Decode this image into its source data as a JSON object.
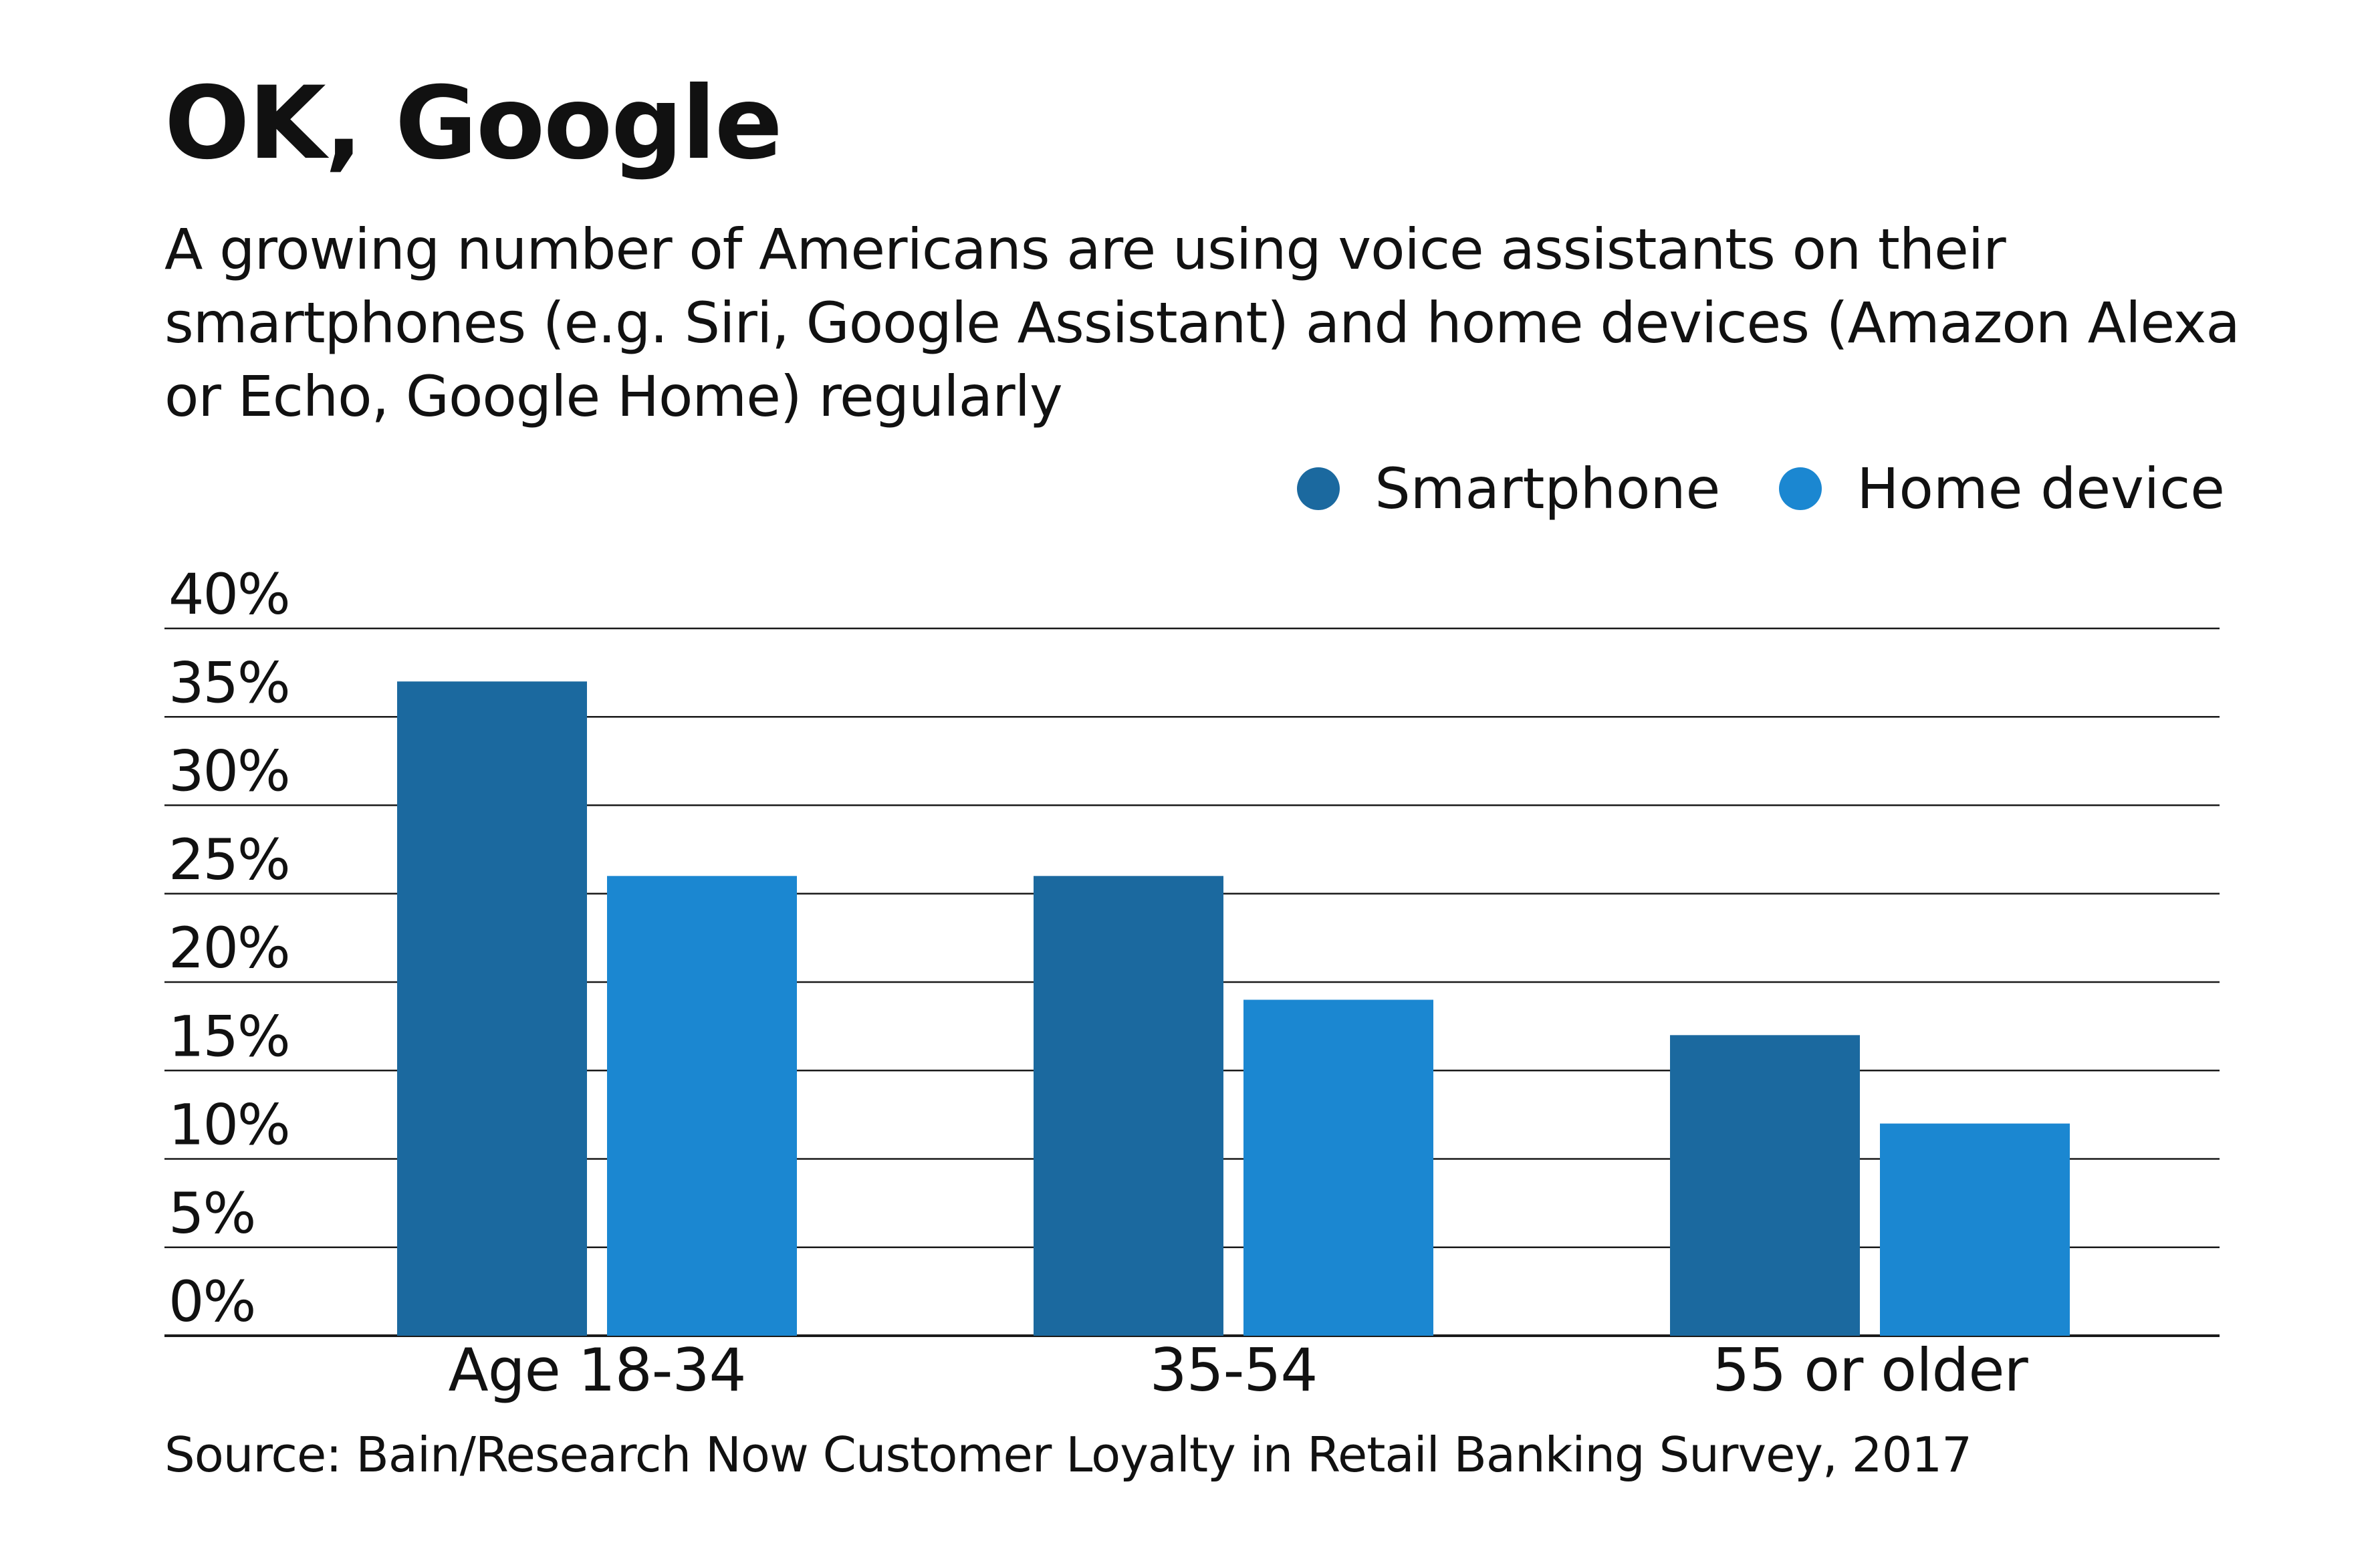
{
  "chart_data": {
    "type": "bar",
    "title": "OK, Google",
    "subtitle": "A growing number of Americans are using voice assistants on their smartphones (e.g. Siri, Google Assistant) and home devices (Amazon Alexa or Echo, Google Home) regularly",
    "categories": [
      "Age 18-34",
      "35-54",
      "55 or older"
    ],
    "series": [
      {
        "name": "Smartphone",
        "values": [
          37,
          26,
          17
        ],
        "color": "#1b699f"
      },
      {
        "name": "Home device",
        "values": [
          26,
          19,
          12
        ],
        "color": "#1b87d1"
      }
    ],
    "ylim": [
      0,
      40
    ],
    "yticks": [
      0,
      5,
      10,
      15,
      20,
      25,
      30,
      35,
      40
    ],
    "ytick_labels": [
      "0%",
      "5%",
      "10%",
      "15%",
      "20%",
      "25%",
      "30%",
      "35%",
      "40%"
    ],
    "xlabel": "",
    "ylabel": "",
    "grid": true,
    "legend_position": "top-right",
    "source": "Source: Bain/Research Now Customer Loyalty in Retail Banking Survey, 2017"
  }
}
